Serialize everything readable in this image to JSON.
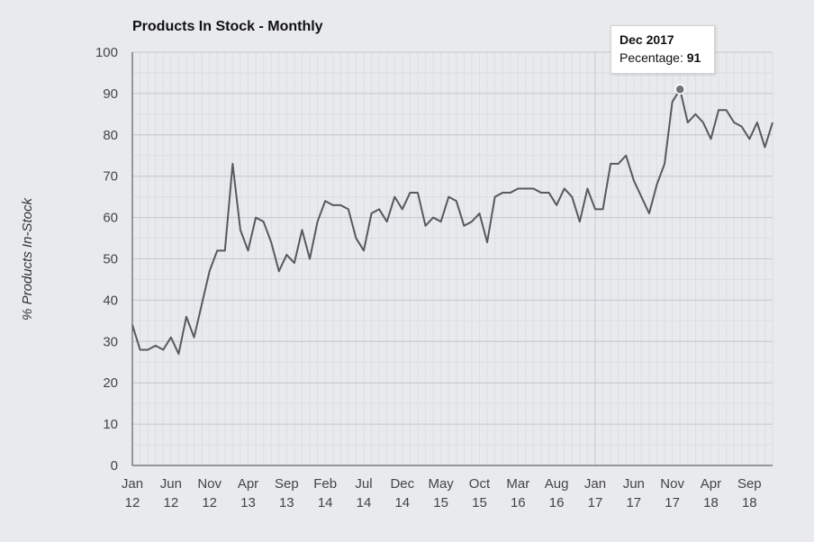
{
  "chart_data": {
    "type": "line",
    "title": "Products In Stock - Monthly",
    "ylabel": "% Products In-Stock",
    "xlabel": "",
    "ylim": [
      0,
      100
    ],
    "yticks": [
      0,
      10,
      20,
      30,
      40,
      50,
      60,
      70,
      80,
      90,
      100
    ],
    "grid": true,
    "x_tick_labels": [
      {
        "month": "Jan",
        "year": "12",
        "index": 0
      },
      {
        "month": "Jun",
        "year": "12",
        "index": 5
      },
      {
        "month": "Nov",
        "year": "12",
        "index": 10
      },
      {
        "month": "Apr",
        "year": "13",
        "index": 15
      },
      {
        "month": "Sep",
        "year": "13",
        "index": 20
      },
      {
        "month": "Feb",
        "year": "14",
        "index": 25
      },
      {
        "month": "Jul",
        "year": "14",
        "index": 30
      },
      {
        "month": "Dec",
        "year": "14",
        "index": 35
      },
      {
        "month": "May",
        "year": "15",
        "index": 40
      },
      {
        "month": "Oct",
        "year": "15",
        "index": 45
      },
      {
        "month": "Mar",
        "year": "16",
        "index": 50
      },
      {
        "month": "Aug",
        "year": "16",
        "index": 55
      },
      {
        "month": "Jan",
        "year": "17",
        "index": 60
      },
      {
        "month": "Jun",
        "year": "17",
        "index": 65
      },
      {
        "month": "Nov",
        "year": "17",
        "index": 70
      },
      {
        "month": "Apr",
        "year": "18",
        "index": 75
      },
      {
        "month": "Sep",
        "year": "18",
        "index": 80
      }
    ],
    "x_range": [
      0,
      83
    ],
    "series": [
      {
        "color": "#555a5e",
        "values": [
          34,
          28,
          28,
          29,
          28,
          31,
          27,
          36,
          31,
          39,
          47,
          52,
          52,
          73,
          57,
          52,
          60,
          59,
          54,
          47,
          51,
          49,
          57,
          50,
          59,
          64,
          63,
          63,
          62,
          55,
          52,
          61,
          62,
          59,
          65,
          62,
          66,
          66,
          58,
          60,
          59,
          65,
          64,
          58,
          59,
          61,
          54,
          65,
          66,
          66,
          67,
          67,
          67,
          66,
          66,
          63,
          67,
          65,
          59,
          67,
          62,
          62,
          73,
          73,
          75,
          69,
          65,
          61,
          68,
          73,
          88,
          91,
          83,
          85,
          83,
          79,
          86,
          86,
          83,
          82,
          79,
          83,
          77,
          83
        ]
      }
    ],
    "tooltip": {
      "title": "Dec 2017",
      "label": "Pecentage:",
      "value": "91",
      "index": 71
    }
  }
}
